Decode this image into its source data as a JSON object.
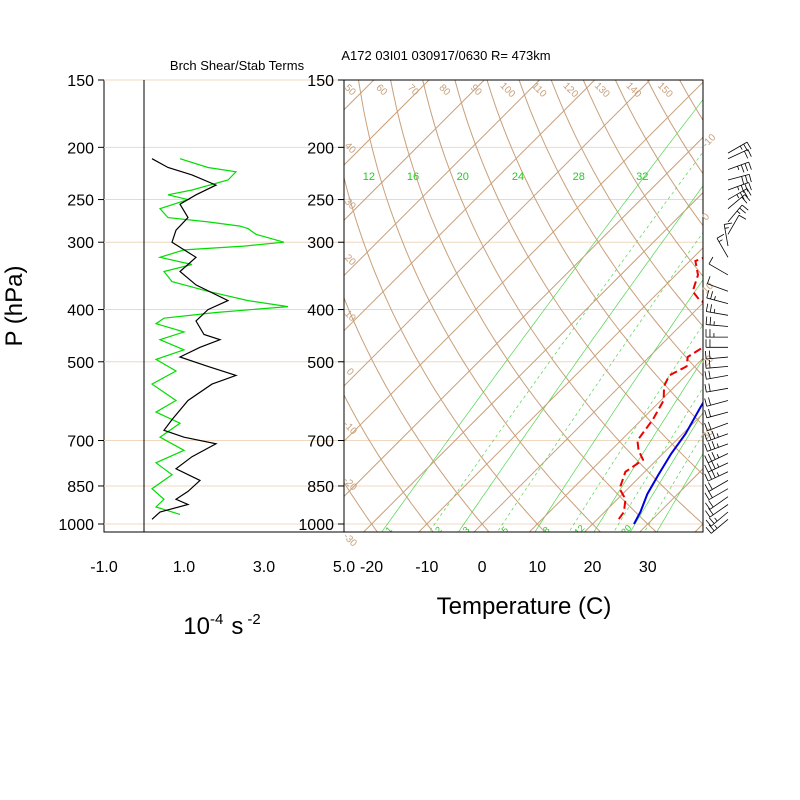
{
  "chart_data": [
    {
      "type": "line",
      "title": "Brch Shear/Stab Terms",
      "xlabel_base": "10",
      "xlabel_exp1": "-4",
      "xlabel_unit": "s",
      "xlabel_exp2": "-2",
      "ylabel": "P (hPa)",
      "xlim": [
        -1,
        5
      ],
      "x_ticks": [
        "-1.0",
        "1.0",
        "3.0",
        "5.0"
      ],
      "x_tick_values": [
        -1,
        1,
        3,
        5
      ],
      "pressure_ticks": [
        "150",
        "200",
        "250",
        "300",
        "400",
        "500",
        "700",
        "850",
        "1000"
      ],
      "pressure_values": [
        150,
        200,
        250,
        300,
        400,
        500,
        700,
        850,
        1000
      ],
      "ylim": [
        150,
        1000
      ],
      "zero_line_x": 0,
      "series": [
        {
          "color": "#00dd00",
          "points": [
            [
              0.9,
              210
            ],
            [
              1.6,
              218
            ],
            [
              2.3,
              222
            ],
            [
              2.1,
              230
            ],
            [
              1.2,
              240
            ],
            [
              0.6,
              245
            ],
            [
              1.1,
              250
            ],
            [
              0.4,
              260
            ],
            [
              0.6,
              270
            ],
            [
              1.6,
              275
            ],
            [
              2.4,
              280
            ],
            [
              2.6,
              283
            ],
            [
              2.8,
              290
            ],
            [
              3.5,
              300
            ],
            [
              2.5,
              305
            ],
            [
              1.0,
              310
            ],
            [
              0.4,
              320
            ],
            [
              1.2,
              330
            ],
            [
              0.5,
              340
            ],
            [
              0.7,
              355
            ],
            [
              1.6,
              370
            ],
            [
              2.6,
              385
            ],
            [
              3.6,
              395
            ],
            [
              1.8,
              405
            ],
            [
              0.5,
              415
            ],
            [
              0.3,
              425
            ],
            [
              1.0,
              440
            ],
            [
              0.4,
              455
            ],
            [
              1.0,
              475
            ],
            [
              0.3,
              495
            ],
            [
              0.8,
              520
            ],
            [
              0.2,
              550
            ],
            [
              0.8,
              590
            ],
            [
              0.3,
              620
            ],
            [
              0.9,
              650
            ],
            [
              0.4,
              690
            ],
            [
              1.0,
              730
            ],
            [
              0.3,
              770
            ],
            [
              0.7,
              810
            ],
            [
              0.2,
              860
            ],
            [
              0.5,
              900
            ],
            [
              0.3,
              930
            ],
            [
              0.9,
              960
            ]
          ]
        },
        {
          "color": "#000000",
          "points": [
            [
              0.2,
              210
            ],
            [
              0.6,
              218
            ],
            [
              1.2,
              225
            ],
            [
              1.8,
              235
            ],
            [
              1.3,
              245
            ],
            [
              0.9,
              255
            ],
            [
              1.1,
              270
            ],
            [
              0.8,
              285
            ],
            [
              0.7,
              300
            ],
            [
              1.3,
              320
            ],
            [
              0.9,
              340
            ],
            [
              1.3,
              360
            ],
            [
              2.1,
              385
            ],
            [
              1.6,
              400
            ],
            [
              1.3,
              420
            ],
            [
              1.5,
              445
            ],
            [
              1.9,
              455
            ],
            [
              1.4,
              470
            ],
            [
              0.9,
              490
            ],
            [
              1.6,
              510
            ],
            [
              2.3,
              530
            ],
            [
              1.7,
              550
            ],
            [
              1.1,
              590
            ],
            [
              0.7,
              640
            ],
            [
              0.5,
              670
            ],
            [
              1.0,
              690
            ],
            [
              1.8,
              710
            ],
            [
              1.2,
              750
            ],
            [
              0.8,
              790
            ],
            [
              1.4,
              830
            ],
            [
              1.1,
              870
            ],
            [
              0.8,
              900
            ],
            [
              1.1,
              920
            ],
            [
              0.4,
              950
            ],
            [
              0.2,
              980
            ]
          ]
        }
      ]
    },
    {
      "type": "line",
      "subtype": "skew-t",
      "title": "A172 03I01 030917/0630 R= 473km",
      "xlabel": "Temperature (C)",
      "xlim": [
        -25,
        40
      ],
      "x_ticks": [
        "-20",
        "-10",
        "0",
        "10",
        "20",
        "30"
      ],
      "x_tick_values": [
        -20,
        -10,
        0,
        10,
        20,
        30
      ],
      "pressure_ticks": [
        "150",
        "200",
        "250",
        "300",
        "400",
        "500",
        "700",
        "850",
        "1000"
      ],
      "pressure_values": [
        150,
        200,
        250,
        300,
        400,
        500,
        700,
        850,
        1000
      ],
      "mixing_ratio_top_labels": [
        "12",
        "16",
        "20",
        "24",
        "28",
        "32"
      ],
      "mixing_ratio_top_x": [
        -20.5,
        -12.5,
        -3.5,
        6.5,
        17.5,
        29
      ],
      "mixing_ratio_bottom_labels": [
        "1",
        "2",
        "3",
        "5",
        "8",
        "12",
        "20"
      ],
      "mixing_ratio_bottom_x": [
        -16.5,
        -7.5,
        -2.5,
        4.5,
        12,
        18,
        26.5
      ],
      "adiabat_top_labels": [
        "50",
        "60",
        "70",
        "80",
        "90",
        "100",
        "110",
        "120",
        "130",
        "140",
        "150"
      ],
      "isotherm_right_labels": [
        "-10",
        "0",
        "10",
        "20",
        "30"
      ],
      "isotherm_left_labels": [
        "40",
        "30",
        "20",
        "10",
        "0",
        "-10",
        "-20",
        "-30"
      ],
      "isotherms_c": [
        -110,
        -100,
        -90,
        -80,
        -70,
        -60,
        -50,
        -40,
        -30,
        -20,
        -10,
        0,
        10,
        20,
        30,
        40
      ],
      "dry_adiabats_theta_c": [
        -30,
        -20,
        -10,
        0,
        10,
        20,
        30,
        40,
        50,
        60,
        70,
        80,
        90,
        100,
        110,
        120,
        130,
        140,
        150
      ],
      "series": [
        {
          "name": "",
          "kind": "temperature",
          "color": "#0000dd",
          "points": [
            [
              1,
              205
            ],
            [
              3.5,
              230
            ],
            [
              5.5,
              255
            ],
            [
              7.5,
              280
            ],
            [
              9.5,
              305
            ],
            [
              11.5,
              335
            ],
            [
              13.5,
              365
            ],
            [
              13,
              400
            ],
            [
              14,
              440
            ],
            [
              15,
              475
            ],
            [
              16.5,
              520
            ],
            [
              17,
              560
            ],
            [
              18.5,
              610
            ],
            [
              20.5,
              680
            ],
            [
              21.5,
              740
            ],
            [
              23,
              810
            ],
            [
              24.5,
              880
            ],
            [
              26.5,
              950
            ],
            [
              27.5,
              1000
            ]
          ]
        },
        {
          "name": "",
          "kind": "dewpoint",
          "color": "#ee0000",
          "points": [
            [
              -3,
              225
            ],
            [
              -1,
              245
            ],
            [
              0.5,
              265
            ],
            [
              1.5,
              285
            ],
            [
              1,
              300
            ],
            [
              -3,
              310
            ],
            [
              -7,
              315
            ],
            [
              -9,
              325
            ],
            [
              -6,
              345
            ],
            [
              -4,
              370
            ],
            [
              -1,
              385
            ],
            [
              4.5,
              400
            ],
            [
              7.5,
              410
            ],
            [
              9.5,
              430
            ],
            [
              10,
              450
            ],
            [
              8,
              470
            ],
            [
              7,
              490
            ],
            [
              8.5,
              510
            ],
            [
              7,
              530
            ],
            [
              8,
              555
            ],
            [
              10.5,
              590
            ],
            [
              12,
              640
            ],
            [
              13,
              700
            ],
            [
              15,
              730
            ],
            [
              17.5,
              760
            ],
            [
              16.5,
              800
            ],
            [
              18.5,
              860
            ],
            [
              21.5,
              900
            ],
            [
              23.5,
              950
            ],
            [
              24,
              990
            ]
          ]
        }
      ],
      "wind_barbs": [
        {
          "p": 205,
          "dir": 60,
          "spd": 15
        },
        {
          "p": 210,
          "dir": 65,
          "spd": 20
        },
        {
          "p": 220,
          "dir": 70,
          "spd": 25
        },
        {
          "p": 230,
          "dir": 75,
          "spd": 30
        },
        {
          "p": 240,
          "dir": 70,
          "spd": 25
        },
        {
          "p": 250,
          "dir": 60,
          "spd": 25
        },
        {
          "p": 260,
          "dir": 50,
          "spd": 20
        },
        {
          "p": 275,
          "dir": 40,
          "spd": 15
        },
        {
          "p": 290,
          "dir": 30,
          "spd": 10
        },
        {
          "p": 305,
          "dir": 350,
          "spd": 5
        },
        {
          "p": 320,
          "dir": 330,
          "spd": 5
        },
        {
          "p": 345,
          "dir": 300,
          "spd": 10
        },
        {
          "p": 370,
          "dir": 290,
          "spd": 10
        },
        {
          "p": 390,
          "dir": 285,
          "spd": 15
        },
        {
          "p": 410,
          "dir": 280,
          "spd": 15
        },
        {
          "p": 430,
          "dir": 275,
          "spd": 15
        },
        {
          "p": 450,
          "dir": 270,
          "spd": 15
        },
        {
          "p": 470,
          "dir": 270,
          "spd": 20
        },
        {
          "p": 490,
          "dir": 265,
          "spd": 20
        },
        {
          "p": 510,
          "dir": 265,
          "spd": 20
        },
        {
          "p": 530,
          "dir": 260,
          "spd": 20
        },
        {
          "p": 560,
          "dir": 260,
          "spd": 20
        },
        {
          "p": 590,
          "dir": 255,
          "spd": 20
        },
        {
          "p": 620,
          "dir": 255,
          "spd": 20
        },
        {
          "p": 650,
          "dir": 250,
          "spd": 20
        },
        {
          "p": 680,
          "dir": 250,
          "spd": 25
        },
        {
          "p": 710,
          "dir": 250,
          "spd": 25
        },
        {
          "p": 740,
          "dir": 245,
          "spd": 25
        },
        {
          "p": 770,
          "dir": 245,
          "spd": 25
        },
        {
          "p": 800,
          "dir": 245,
          "spd": 25
        },
        {
          "p": 830,
          "dir": 240,
          "spd": 20
        },
        {
          "p": 860,
          "dir": 240,
          "spd": 20
        },
        {
          "p": 890,
          "dir": 235,
          "spd": 20
        },
        {
          "p": 920,
          "dir": 235,
          "spd": 20
        },
        {
          "p": 950,
          "dir": 230,
          "spd": 15
        },
        {
          "p": 980,
          "dir": 230,
          "spd": 15
        }
      ]
    }
  ],
  "colors": {
    "grid_tan": "#c8a07a",
    "mixing_green": "#22cc22",
    "pressure_lines": "#f0d8c0",
    "temperature": "#0000dd",
    "dewpoint": "#ee0000",
    "shear": "#00dd00"
  }
}
